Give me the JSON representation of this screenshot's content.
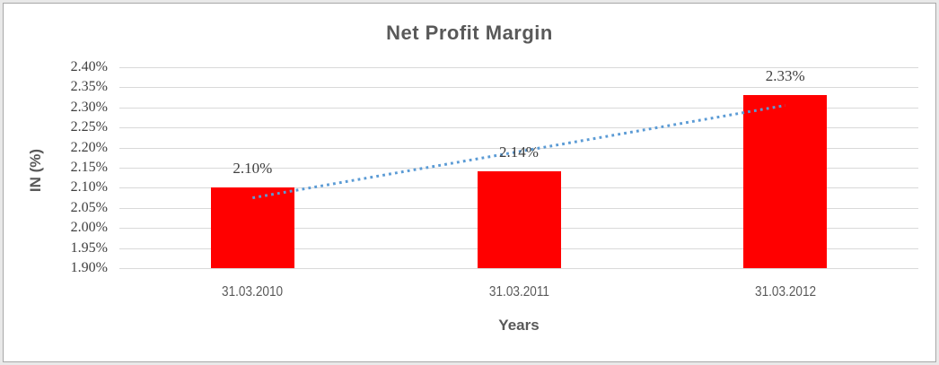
{
  "chart_data": {
    "type": "bar",
    "title": "Net Profit Margin",
    "xlabel": "Years",
    "ylabel": "IN (%)",
    "categories": [
      "31.03.2010",
      "31.03.2011",
      "31.03.2012"
    ],
    "values": [
      2.1,
      2.14,
      2.33
    ],
    "data_labels": [
      "2.10%",
      "2.14%",
      "2.33%"
    ],
    "y_ticks": [
      "2.40%",
      "2.35%",
      "2.30%",
      "2.25%",
      "2.20%",
      "2.15%",
      "2.10%",
      "2.05%",
      "2.00%",
      "1.95%",
      "1.90%"
    ],
    "ylim": [
      1.9,
      2.4
    ],
    "y_step": 0.05,
    "grid": true,
    "legend": "none",
    "bar_color": "#ff0000",
    "trendline": {
      "type": "linear",
      "style": "dotted",
      "color": "#5b9bd5"
    },
    "colors": {
      "gridline": "#d9d9d9",
      "title_text": "#595959",
      "axis_title_text": "#595959",
      "tick_text": "#3f3f3f",
      "frame_border": "#a8a8a8",
      "outer_margin": "#e9e9e9"
    }
  }
}
